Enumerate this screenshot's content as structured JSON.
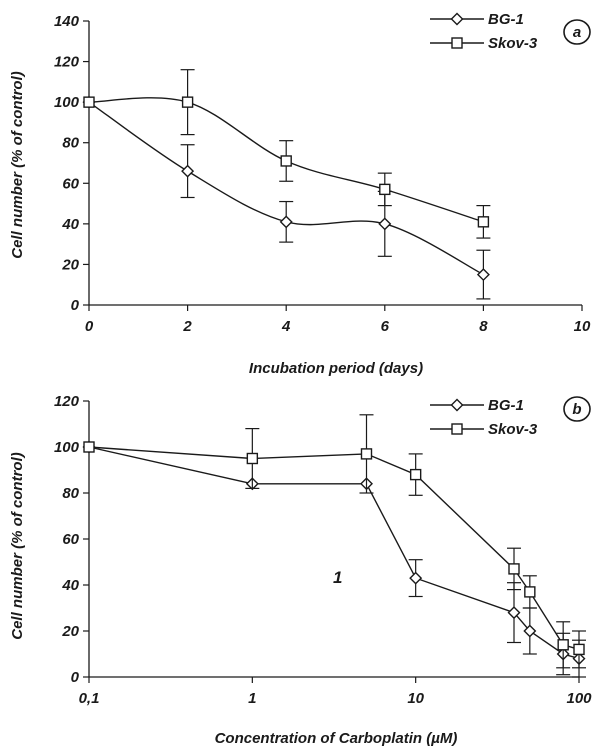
{
  "chart_data": [
    {
      "type": "line",
      "panel_label": "a",
      "xlabel": "Incubation period (days)",
      "ylabel": "Cell number (% of control)",
      "xlim": [
        0,
        10
      ],
      "ylim": [
        0,
        140
      ],
      "xticks": [
        "0",
        "2",
        "4",
        "6",
        "8",
        "10"
      ],
      "yticks": [
        "0",
        "20",
        "40",
        "60",
        "80",
        "100",
        "120",
        "140"
      ],
      "legend_position": "top-right",
      "grid": false,
      "series": [
        {
          "name": "BG-1",
          "marker": "diamond",
          "x": [
            0,
            2,
            4,
            6,
            8
          ],
          "values": [
            100,
            66,
            41,
            40,
            15
          ],
          "err": [
            0,
            13,
            10,
            16,
            12
          ]
        },
        {
          "name": "Skov-3",
          "marker": "square",
          "x": [
            0,
            2,
            4,
            6,
            8
          ],
          "values": [
            100,
            100,
            71,
            57,
            41
          ],
          "err": [
            0,
            16,
            10,
            8,
            8
          ]
        }
      ]
    },
    {
      "type": "line",
      "panel_label": "b",
      "xscale": "log",
      "xlabel": "Concentration of Carboplatin (µM)",
      "ylabel": "Cell number (% of control)",
      "xlim": [
        0.1,
        100
      ],
      "ylim": [
        0,
        120
      ],
      "xticks": [
        "0,1",
        "1",
        "10",
        "100"
      ],
      "yticks": [
        "0",
        "20",
        "40",
        "60",
        "80",
        "100",
        "120"
      ],
      "legend_position": "top-right",
      "grid": false,
      "annotation": "1",
      "series": [
        {
          "name": "BG-1",
          "marker": "diamond",
          "x": [
            0.1,
            1,
            5,
            10,
            40,
            50,
            80,
            100
          ],
          "values": [
            100,
            84,
            84,
            43,
            28,
            20,
            10,
            8
          ],
          "err": [
            0,
            0,
            0,
            8,
            13,
            10,
            9,
            8
          ]
        },
        {
          "name": "Skov-3",
          "marker": "square",
          "x": [
            0.1,
            1,
            5,
            10,
            40,
            50,
            80,
            100
          ],
          "values": [
            100,
            95,
            97,
            88,
            47,
            37,
            14,
            12
          ],
          "err": [
            0,
            13,
            17,
            9,
            9,
            7,
            10,
            8
          ]
        }
      ]
    }
  ]
}
